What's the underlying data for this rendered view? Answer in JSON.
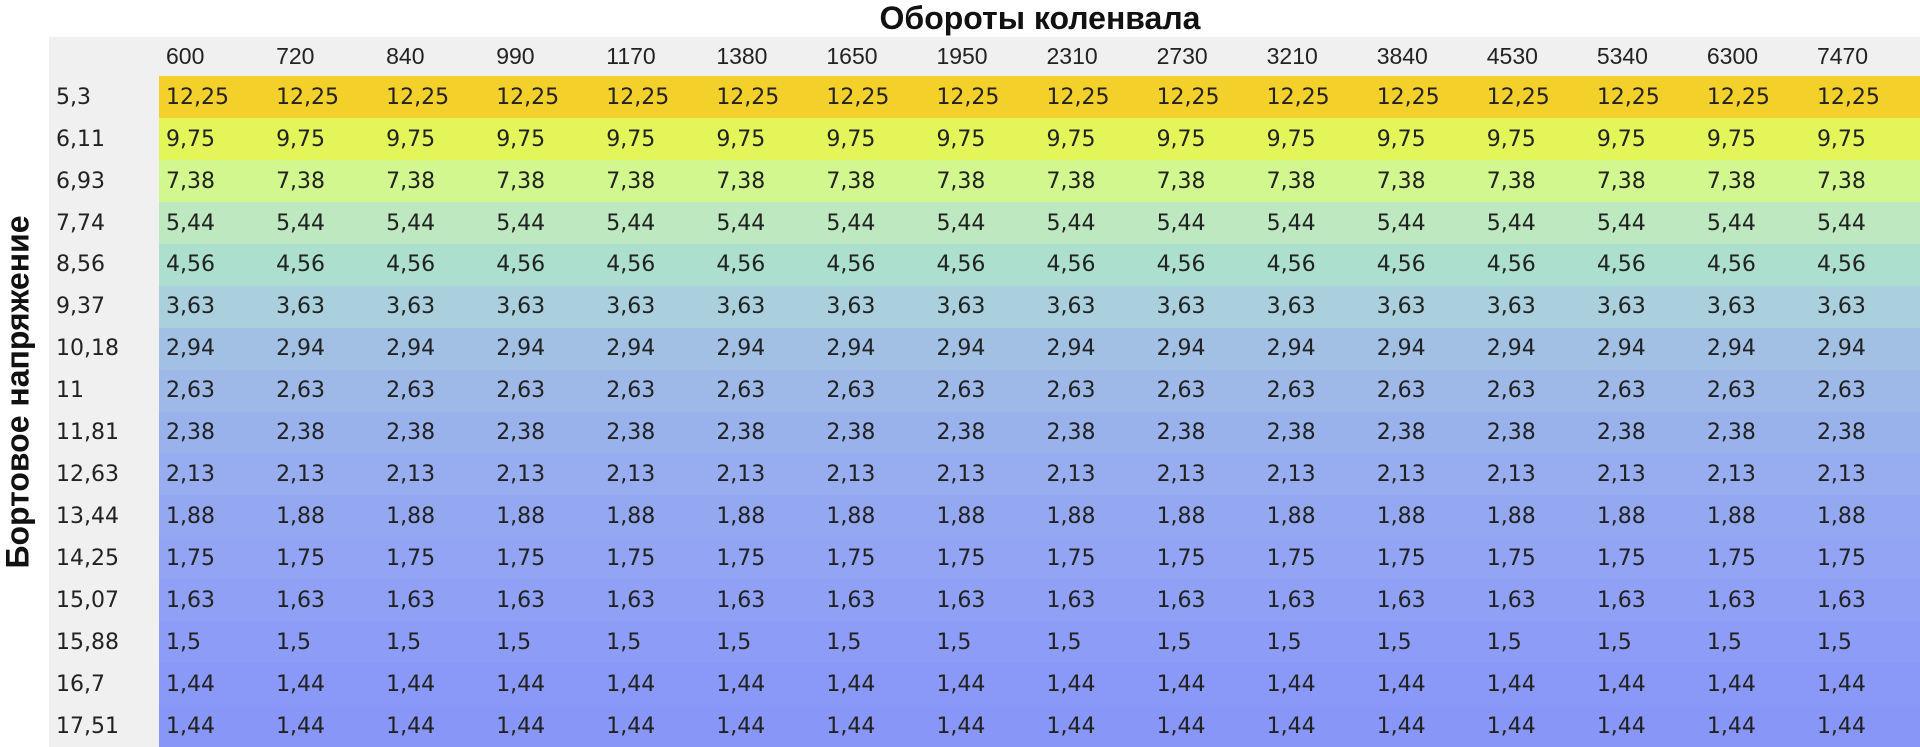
{
  "header": {
    "title": "Обороты коленвала",
    "side_title": "Бортовое напряжение"
  },
  "table": {
    "columns": [
      "600",
      "720",
      "840",
      "990",
      "1170",
      "1380",
      "1650",
      "1950",
      "2310",
      "2730",
      "3210",
      "3840",
      "4530",
      "5340",
      "6300",
      "7470"
    ],
    "row_labels": [
      "5,3",
      "6,11",
      "6,93",
      "7,74",
      "8,56",
      "9,37",
      "10,18",
      "11",
      "11,81",
      "12,63",
      "13,44",
      "14,25",
      "15,07",
      "15,88",
      "16,7",
      "17,51"
    ],
    "cells": [
      [
        "12,25",
        "12,25",
        "12,25",
        "12,25",
        "12,25",
        "12,25",
        "12,25",
        "12,25",
        "12,25",
        "12,25",
        "12,25",
        "12,25",
        "12,25",
        "12,25",
        "12,25",
        "12,25"
      ],
      [
        "9,75",
        "9,75",
        "9,75",
        "9,75",
        "9,75",
        "9,75",
        "9,75",
        "9,75",
        "9,75",
        "9,75",
        "9,75",
        "9,75",
        "9,75",
        "9,75",
        "9,75",
        "9,75"
      ],
      [
        "7,38",
        "7,38",
        "7,38",
        "7,38",
        "7,38",
        "7,38",
        "7,38",
        "7,38",
        "7,38",
        "7,38",
        "7,38",
        "7,38",
        "7,38",
        "7,38",
        "7,38",
        "7,38"
      ],
      [
        "5,44",
        "5,44",
        "5,44",
        "5,44",
        "5,44",
        "5,44",
        "5,44",
        "5,44",
        "5,44",
        "5,44",
        "5,44",
        "5,44",
        "5,44",
        "5,44",
        "5,44",
        "5,44"
      ],
      [
        "4,56",
        "4,56",
        "4,56",
        "4,56",
        "4,56",
        "4,56",
        "4,56",
        "4,56",
        "4,56",
        "4,56",
        "4,56",
        "4,56",
        "4,56",
        "4,56",
        "4,56",
        "4,56"
      ],
      [
        "3,63",
        "3,63",
        "3,63",
        "3,63",
        "3,63",
        "3,63",
        "3,63",
        "3,63",
        "3,63",
        "3,63",
        "3,63",
        "3,63",
        "3,63",
        "3,63",
        "3,63",
        "3,63"
      ],
      [
        "2,94",
        "2,94",
        "2,94",
        "2,94",
        "2,94",
        "2,94",
        "2,94",
        "2,94",
        "2,94",
        "2,94",
        "2,94",
        "2,94",
        "2,94",
        "2,94",
        "2,94",
        "2,94"
      ],
      [
        "2,63",
        "2,63",
        "2,63",
        "2,63",
        "2,63",
        "2,63",
        "2,63",
        "2,63",
        "2,63",
        "2,63",
        "2,63",
        "2,63",
        "2,63",
        "2,63",
        "2,63",
        "2,63"
      ],
      [
        "2,38",
        "2,38",
        "2,38",
        "2,38",
        "2,38",
        "2,38",
        "2,38",
        "2,38",
        "2,38",
        "2,38",
        "2,38",
        "2,38",
        "2,38",
        "2,38",
        "2,38",
        "2,38"
      ],
      [
        "2,13",
        "2,13",
        "2,13",
        "2,13",
        "2,13",
        "2,13",
        "2,13",
        "2,13",
        "2,13",
        "2,13",
        "2,13",
        "2,13",
        "2,13",
        "2,13",
        "2,13",
        "2,13"
      ],
      [
        "1,88",
        "1,88",
        "1,88",
        "1,88",
        "1,88",
        "1,88",
        "1,88",
        "1,88",
        "1,88",
        "1,88",
        "1,88",
        "1,88",
        "1,88",
        "1,88",
        "1,88",
        "1,88"
      ],
      [
        "1,75",
        "1,75",
        "1,75",
        "1,75",
        "1,75",
        "1,75",
        "1,75",
        "1,75",
        "1,75",
        "1,75",
        "1,75",
        "1,75",
        "1,75",
        "1,75",
        "1,75",
        "1,75"
      ],
      [
        "1,63",
        "1,63",
        "1,63",
        "1,63",
        "1,63",
        "1,63",
        "1,63",
        "1,63",
        "1,63",
        "1,63",
        "1,63",
        "1,63",
        "1,63",
        "1,63",
        "1,63",
        "1,63"
      ],
      [
        "1,5",
        "1,5",
        "1,5",
        "1,5",
        "1,5",
        "1,5",
        "1,5",
        "1,5",
        "1,5",
        "1,5",
        "1,5",
        "1,5",
        "1,5",
        "1,5",
        "1,5",
        "1,5"
      ],
      [
        "1,44",
        "1,44",
        "1,44",
        "1,44",
        "1,44",
        "1,44",
        "1,44",
        "1,44",
        "1,44",
        "1,44",
        "1,44",
        "1,44",
        "1,44",
        "1,44",
        "1,44",
        "1,44"
      ],
      [
        "1,44",
        "1,44",
        "1,44",
        "1,44",
        "1,44",
        "1,44",
        "1,44",
        "1,44",
        "1,44",
        "1,44",
        "1,44",
        "1,44",
        "1,44",
        "1,44",
        "1,44",
        "1,44"
      ]
    ]
  }
}
